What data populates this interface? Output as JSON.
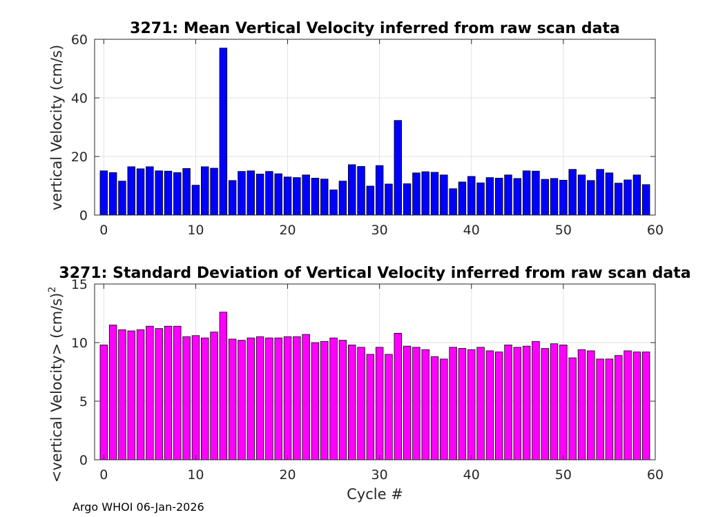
{
  "footer": "Argo WHOI 06-Jan-2026",
  "chart_data": [
    {
      "type": "bar",
      "title": "3271: Mean Vertical Velocity inferred from raw scan data",
      "xlabel": "",
      "ylabel": "vertical Velocity (cm/s)",
      "xlim": [
        -1,
        60
      ],
      "ylim": [
        0,
        60
      ],
      "xticks": [
        0,
        10,
        20,
        30,
        40,
        50,
        60
      ],
      "yticks": [
        0,
        20,
        40,
        60
      ],
      "grid": true,
      "bar_color": "#0000ff",
      "x": [
        0,
        1,
        2,
        3,
        4,
        5,
        6,
        7,
        8,
        9,
        10,
        11,
        12,
        13,
        14,
        15,
        16,
        17,
        18,
        19,
        20,
        21,
        22,
        23,
        24,
        25,
        26,
        27,
        28,
        29,
        30,
        31,
        32,
        33,
        34,
        35,
        36,
        37,
        38,
        39,
        40,
        41,
        42,
        43,
        44,
        45,
        46,
        47,
        48,
        49,
        50,
        51,
        52,
        53,
        54,
        55,
        56,
        57,
        58,
        59
      ],
      "values": [
        15.1,
        14.5,
        11.6,
        16.5,
        15.8,
        16.5,
        15.1,
        15.0,
        14.5,
        15.9,
        10.2,
        16.5,
        16.0,
        57.0,
        11.8,
        14.9,
        15.1,
        14.0,
        14.9,
        14.1,
        13.0,
        12.8,
        13.7,
        12.6,
        12.3,
        8.6,
        11.6,
        17.2,
        16.6,
        9.9,
        16.9,
        10.6,
        32.3,
        10.7,
        14.4,
        14.8,
        14.6,
        13.7,
        9.0,
        11.3,
        13.2,
        11.0,
        12.8,
        12.6,
        13.7,
        12.5,
        15.1,
        15.0,
        12.2,
        12.5,
        11.9,
        15.6,
        13.7,
        11.8,
        15.6,
        14.4,
        10.9,
        12.0,
        13.7,
        10.4
      ]
    },
    {
      "type": "bar",
      "title": "3271: Standard Deviation of Vertical Velocity inferred from raw scan data",
      "xlabel": "Cycle #",
      "ylabel": "<vertical Velocity> (cm/s)",
      "ylabel_superscript": "2",
      "xlim": [
        -1,
        60
      ],
      "ylim": [
        0,
        15
      ],
      "xticks": [
        0,
        10,
        20,
        30,
        40,
        50,
        60
      ],
      "yticks": [
        0,
        5,
        10,
        15
      ],
      "grid": true,
      "bar_color": "#ff00ff",
      "x": [
        0,
        1,
        2,
        3,
        4,
        5,
        6,
        7,
        8,
        9,
        10,
        11,
        12,
        13,
        14,
        15,
        16,
        17,
        18,
        19,
        20,
        21,
        22,
        23,
        24,
        25,
        26,
        27,
        28,
        29,
        30,
        31,
        32,
        33,
        34,
        35,
        36,
        37,
        38,
        39,
        40,
        41,
        42,
        43,
        44,
        45,
        46,
        47,
        48,
        49,
        50,
        51,
        52,
        53,
        54,
        55,
        56,
        57,
        58,
        59
      ],
      "values": [
        9.8,
        11.5,
        11.1,
        11.0,
        11.1,
        11.4,
        11.2,
        11.4,
        11.4,
        10.5,
        10.6,
        10.4,
        10.9,
        12.6,
        10.3,
        10.2,
        10.4,
        10.5,
        10.4,
        10.4,
        10.5,
        10.5,
        10.7,
        10.0,
        10.1,
        10.4,
        10.2,
        9.8,
        9.6,
        9.0,
        9.6,
        9.0,
        10.8,
        9.7,
        9.6,
        9.4,
        8.8,
        8.6,
        9.6,
        9.5,
        9.4,
        9.6,
        9.3,
        9.2,
        9.8,
        9.6,
        9.7,
        10.1,
        9.5,
        9.9,
        9.8,
        8.7,
        9.4,
        9.3,
        8.6,
        8.6,
        8.9,
        9.3,
        9.2,
        9.2
      ]
    }
  ]
}
